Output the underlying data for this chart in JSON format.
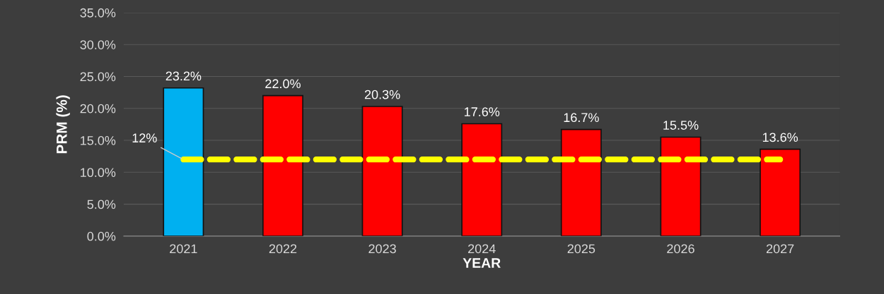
{
  "chart_data": {
    "type": "bar",
    "xlabel": "YEAR",
    "ylabel": "PRM (%)",
    "categories": [
      "2021",
      "2022",
      "2023",
      "2024",
      "2025",
      "2026",
      "2027"
    ],
    "values": [
      23.2,
      22.0,
      20.3,
      17.6,
      16.7,
      15.5,
      13.6
    ],
    "colors": [
      "#00b0f0",
      "#ff0000",
      "#ff0000",
      "#ff0000",
      "#ff0000",
      "#ff0000",
      "#ff0000"
    ],
    "value_labels": [
      "23.2%",
      "22.0%",
      "20.3%",
      "17.6%",
      "16.7%",
      "15.5%",
      "13.6%"
    ],
    "ylim": [
      0,
      35
    ],
    "yticks": [
      {
        "value": 0,
        "label": "0.0%"
      },
      {
        "value": 5,
        "label": "5.0%"
      },
      {
        "value": 10,
        "label": "10.0%"
      },
      {
        "value": 15,
        "label": "15.0%"
      },
      {
        "value": 20,
        "label": "20.0%"
      },
      {
        "value": 25,
        "label": "25.0%"
      },
      {
        "value": 30,
        "label": "30.0%"
      },
      {
        "value": 35,
        "label": "35.0%"
      }
    ],
    "ref_lines": [
      {
        "axis": "y",
        "value": 12,
        "label": "12%",
        "color": "#ffff00",
        "line_style": "dashed"
      }
    ],
    "grid": "y",
    "legend": false
  }
}
